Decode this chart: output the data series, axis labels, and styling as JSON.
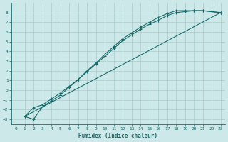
{
  "xlabel": "Humidex (Indice chaleur)",
  "bg_color": "#cce8e8",
  "grid_color": "#aacccc",
  "line_color": "#1a6b6b",
  "xlim": [
    -0.5,
    23.5
  ],
  "ylim": [
    -3.5,
    9.0
  ],
  "xticks": [
    0,
    1,
    2,
    3,
    4,
    5,
    6,
    7,
    8,
    9,
    10,
    11,
    12,
    13,
    14,
    15,
    16,
    17,
    18,
    19,
    20,
    21,
    22,
    23
  ],
  "yticks": [
    -3,
    -2,
    -1,
    0,
    1,
    2,
    3,
    4,
    5,
    6,
    7,
    8
  ],
  "line1_x": [
    1,
    2,
    3,
    4,
    5,
    6,
    7,
    8,
    9,
    10,
    11,
    12,
    13,
    14,
    15,
    16,
    17,
    18,
    19,
    20,
    21,
    22,
    23
  ],
  "line1_y": [
    -2.7,
    -3.0,
    -1.7,
    -1.1,
    -0.5,
    0.3,
    1.1,
    2.0,
    2.8,
    3.7,
    4.5,
    5.3,
    5.9,
    6.5,
    7.0,
    7.5,
    7.9,
    8.2,
    8.2,
    8.2,
    8.2,
    8.1,
    8.0
  ],
  "line2_x": [
    1,
    2,
    3,
    4,
    5,
    6,
    7,
    8,
    9,
    10,
    11,
    12,
    13,
    14,
    15,
    16,
    17,
    18,
    19,
    20,
    21,
    22,
    23
  ],
  "line2_y": [
    -2.7,
    -1.8,
    -1.5,
    -0.9,
    -0.3,
    0.4,
    1.1,
    1.9,
    2.7,
    3.5,
    4.3,
    5.1,
    5.7,
    6.3,
    6.8,
    7.2,
    7.7,
    8.0,
    8.1,
    8.2,
    8.2,
    8.1,
    8.0
  ],
  "line3_x": [
    1,
    23
  ],
  "line3_y": [
    -2.7,
    8.0
  ]
}
